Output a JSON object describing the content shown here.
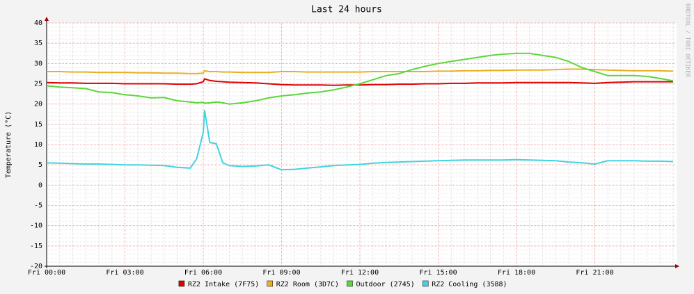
{
  "chart_data": {
    "type": "line",
    "title": "Last 24 hours",
    "ylabel": "Temperature (°C)",
    "watermark": "RRDTOOL / TOBI OETIKER",
    "x": [
      0,
      0.5,
      1,
      1.5,
      2,
      2.5,
      3,
      3.5,
      4,
      4.5,
      5,
      5.5,
      5.75,
      6,
      6.05,
      6.25,
      6.5,
      6.75,
      7,
      7.5,
      8,
      8.5,
      9,
      9.5,
      10,
      10.5,
      11,
      11.5,
      12,
      12.5,
      13,
      13.5,
      14,
      14.5,
      15,
      15.5,
      16,
      16.5,
      17,
      17.5,
      18,
      18.5,
      19,
      19.5,
      20,
      20.5,
      21,
      21.5,
      22,
      22.5,
      23,
      23.5,
      24
    ],
    "xlim": [
      0,
      24
    ],
    "xticks": [
      {
        "value": 0,
        "label": "Fri 00:00"
      },
      {
        "value": 3,
        "label": "Fri 03:00"
      },
      {
        "value": 6,
        "label": "Fri 06:00"
      },
      {
        "value": 9,
        "label": "Fri 09:00"
      },
      {
        "value": 12,
        "label": "Fri 12:00"
      },
      {
        "value": 15,
        "label": "Fri 15:00"
      },
      {
        "value": 18,
        "label": "Fri 18:00"
      },
      {
        "value": 21,
        "label": "Fri 21:00"
      }
    ],
    "ylim": [
      -20,
      40
    ],
    "yticks": [
      -20,
      -15,
      -10,
      -5,
      0,
      5,
      10,
      15,
      20,
      25,
      30,
      35,
      40
    ],
    "grid": true,
    "series": [
      {
        "name": "RZ2 Intake (7F75)",
        "color": "#e00000",
        "values": [
          25.3,
          25.2,
          25.2,
          25.1,
          25.1,
          25.1,
          25,
          25,
          25,
          25,
          24.9,
          24.9,
          25,
          25.5,
          26.2,
          25.8,
          25.6,
          25.5,
          25.4,
          25.3,
          25.2,
          25,
          24.8,
          24.7,
          24.7,
          24.7,
          24.6,
          24.7,
          24.7,
          24.8,
          24.8,
          24.9,
          24.9,
          25,
          25,
          25.1,
          25.1,
          25.2,
          25.2,
          25.2,
          25.3,
          25.3,
          25.3,
          25.3,
          25.3,
          25.2,
          25.1,
          25.3,
          25.4,
          25.5,
          25.5,
          25.5,
          25.5
        ]
      },
      {
        "name": "RZ2 Room (3D7C)",
        "color": "#e8b020",
        "values": [
          28,
          28,
          27.9,
          27.9,
          27.8,
          27.8,
          27.8,
          27.7,
          27.7,
          27.6,
          27.6,
          27.5,
          27.5,
          27.6,
          28.2,
          28,
          28,
          27.9,
          27.9,
          27.8,
          27.8,
          27.8,
          28,
          28,
          27.9,
          27.9,
          27.9,
          27.9,
          27.9,
          28,
          28,
          28,
          28,
          28,
          28.1,
          28.1,
          28.2,
          28.2,
          28.3,
          28.3,
          28.4,
          28.4,
          28.4,
          28.5,
          28.6,
          28.6,
          28.5,
          28.4,
          28.3,
          28.2,
          28.2,
          28.2,
          28.1
        ]
      },
      {
        "name": "Outdoor (2745)",
        "color": "#5ad83a",
        "values": [
          24.5,
          24.2,
          24,
          23.8,
          23,
          22.8,
          22.3,
          22,
          21.5,
          21.6,
          20.8,
          20.5,
          20.3,
          20.4,
          20.2,
          20.3,
          20.5,
          20.3,
          20,
          20.3,
          20.8,
          21.5,
          22,
          22.3,
          22.7,
          23,
          23.5,
          24.2,
          25,
          26,
          27,
          27.5,
          28.5,
          29.3,
          30,
          30.5,
          31,
          31.5,
          32,
          32.3,
          32.5,
          32.5,
          32,
          31.5,
          30.5,
          29,
          28,
          27,
          27,
          27,
          26.8,
          26.3,
          25.7
        ]
      },
      {
        "name": "RZ2 Cooling (3588)",
        "color": "#40d4e0",
        "values": [
          5.5,
          5.4,
          5.3,
          5.2,
          5.2,
          5.1,
          5,
          5,
          4.9,
          4.8,
          4.4,
          4.2,
          6.5,
          13,
          18.5,
          10.5,
          10.2,
          5.5,
          4.8,
          4.6,
          4.7,
          5,
          3.8,
          3.9,
          4.2,
          4.5,
          4.8,
          5,
          5.1,
          5.4,
          5.6,
          5.7,
          5.8,
          5.9,
          6,
          6.1,
          6.2,
          6.2,
          6.2,
          6.2,
          6.3,
          6.2,
          6.1,
          6,
          5.7,
          5.5,
          5.2,
          6,
          6,
          6,
          5.9,
          5.9,
          5.8
        ]
      }
    ]
  }
}
